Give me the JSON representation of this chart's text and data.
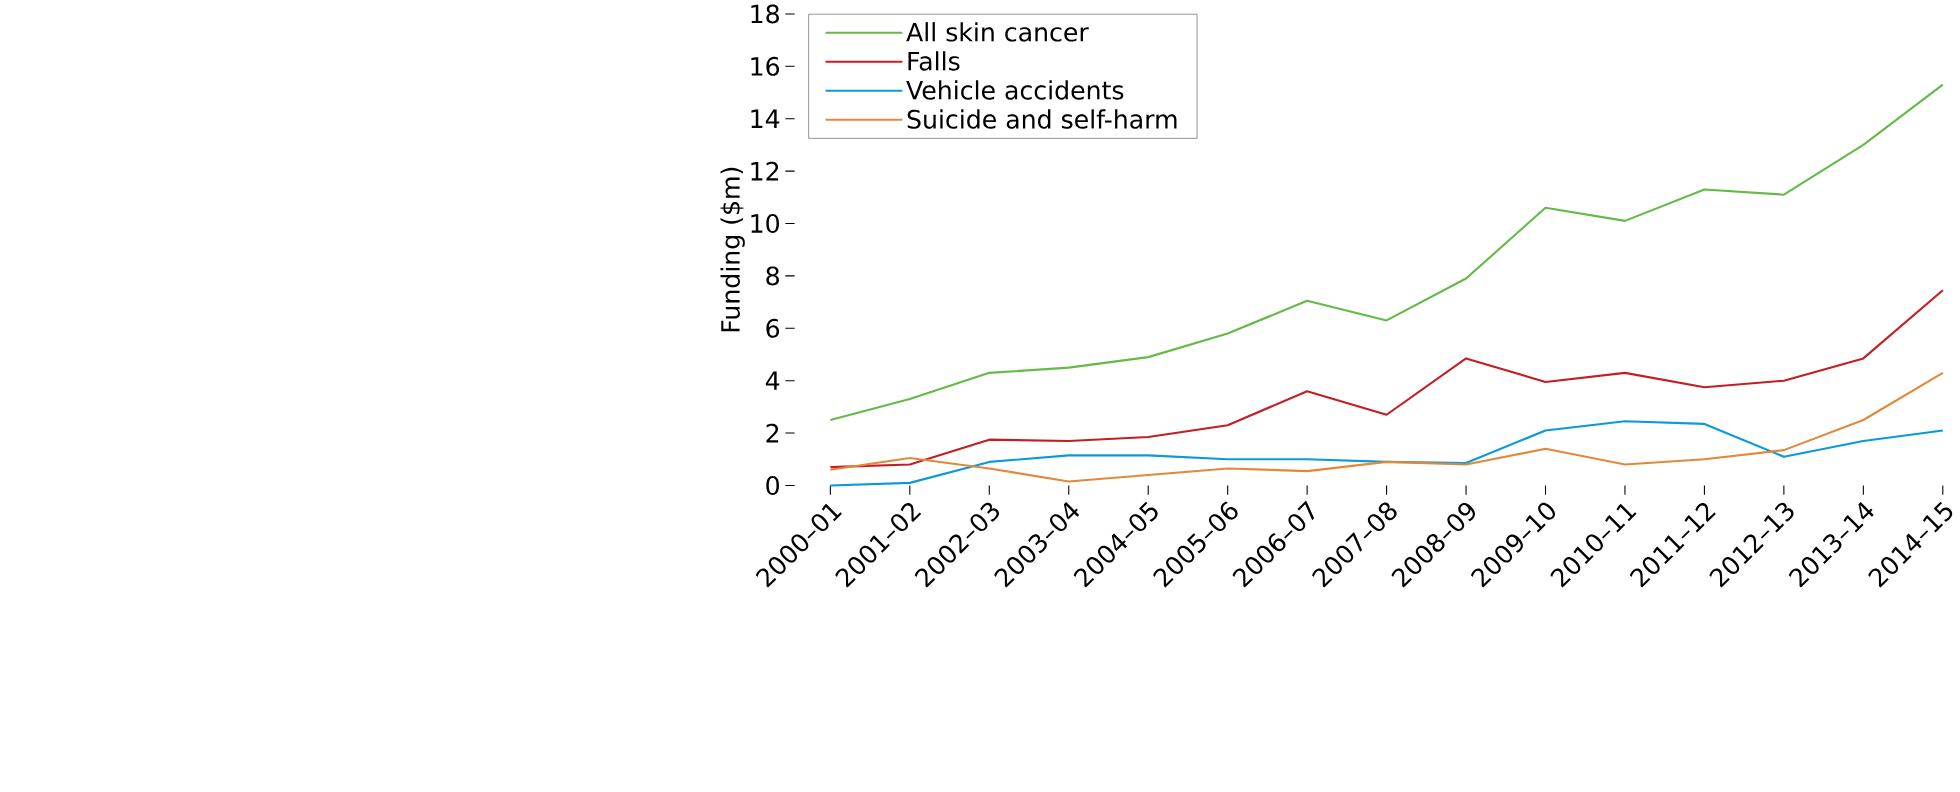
{
  "chart_data": {
    "type": "line",
    "ylabel": "Funding ($m)",
    "categories": [
      "2000–01",
      "2001–02",
      "2002–03",
      "2003–04",
      "2004–05",
      "2005–06",
      "2006–07",
      "2007–08",
      "2008–09",
      "2009–10",
      "2010–11",
      "2011–12",
      "2012–13",
      "2013–14",
      "2014–15"
    ],
    "series": [
      {
        "name": "All skin cancer",
        "color": "#62bb46",
        "values": [
          2.5,
          3.3,
          4.3,
          4.5,
          4.9,
          5.8,
          7.05,
          6.3,
          7.9,
          10.6,
          10.1,
          11.3,
          11.1,
          13.0,
          15.3
        ]
      },
      {
        "name": "Falls",
        "color": "#c41e24",
        "values": [
          0.7,
          0.8,
          1.75,
          1.7,
          1.85,
          2.3,
          3.6,
          2.7,
          4.85,
          3.95,
          4.3,
          3.75,
          4.0,
          4.85,
          7.45
        ]
      },
      {
        "name": "Vehicle accidents",
        "color": "#0a9ad8",
        "values": [
          0.0,
          0.1,
          0.9,
          1.15,
          1.15,
          1.0,
          1.0,
          0.9,
          0.86,
          2.1,
          2.45,
          2.35,
          1.1,
          1.7,
          2.1
        ]
      },
      {
        "name": "Suicide and self-harm",
        "color": "#e3883a",
        "values": [
          0.6,
          1.05,
          0.65,
          0.15,
          0.4,
          0.65,
          0.55,
          0.9,
          0.8,
          1.4,
          0.8,
          1.0,
          1.35,
          2.5,
          4.3
        ]
      }
    ],
    "ylim": [
      0,
      18
    ],
    "yticks": [
      0,
      2,
      4,
      6,
      8,
      10,
      12,
      14,
      16,
      18
    ],
    "grid": false,
    "legend": "top left",
    "marker": "none",
    "line_style": "solid"
  }
}
